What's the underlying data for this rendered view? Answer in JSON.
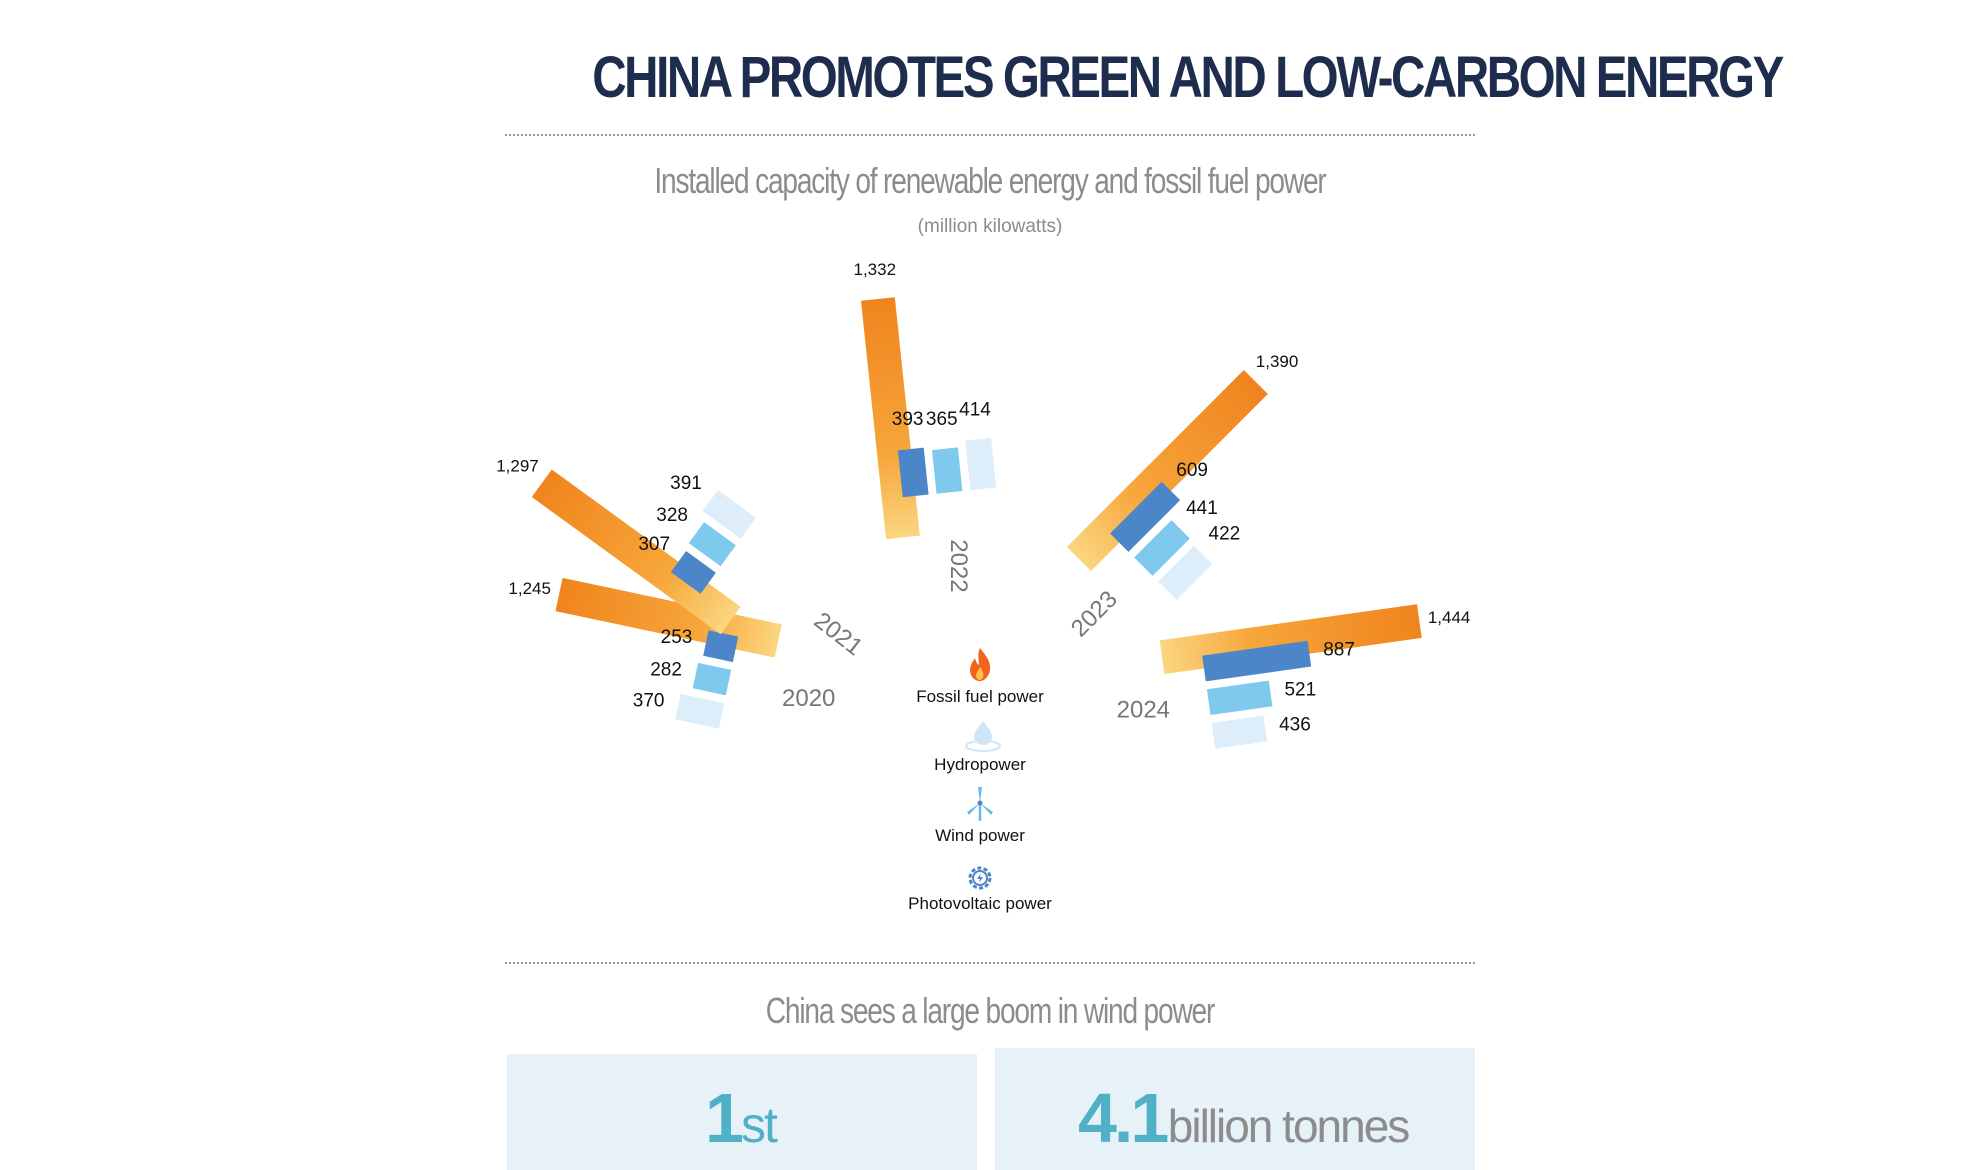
{
  "title": "CHINA PROMOTES GREEN AND LOW-CARBON ENERGY",
  "colors": {
    "title": "#1e2c4e",
    "fossil_dark": "#f0841e",
    "fossil_light": "#fbd680",
    "hydro": "#ddeefa",
    "wind": "#7fc8ee",
    "pv": "#4d86c8",
    "accent": "#4fb0c6"
  },
  "chart_data": {
    "type": "bar",
    "title": "Installed capacity of renewable energy and fossil fuel power",
    "unit": "(million kilowatts)",
    "categories": [
      "2020",
      "2021",
      "2022",
      "2023",
      "2024"
    ],
    "series": [
      {
        "name": "Fossil fuel power",
        "values": [
          1245,
          1297,
          1332,
          1390,
          1444
        ],
        "labels": [
          "1,245",
          "1,297",
          "1,332",
          "1,390",
          "1,444"
        ]
      },
      {
        "name": "Hydropower",
        "values": [
          370,
          391,
          414,
          422,
          436
        ],
        "labels": [
          "370",
          "391",
          "414",
          "422",
          "436"
        ]
      },
      {
        "name": "Wind power",
        "values": [
          282,
          328,
          365,
          441,
          521
        ],
        "labels": [
          "282",
          "328",
          "365",
          "441",
          "521"
        ]
      },
      {
        "name": "Photovoltaic power",
        "values": [
          253,
          307,
          393,
          609,
          887
        ],
        "labels": [
          "253",
          "307",
          "393",
          "609",
          "887"
        ]
      }
    ],
    "legend": [
      {
        "name": "Fossil fuel power",
        "icon": "flame-icon"
      },
      {
        "name": "Hydropower",
        "icon": "water-drop-icon"
      },
      {
        "name": "Wind power",
        "icon": "wind-turbine-icon"
      },
      {
        "name": "Photovoltaic power",
        "icon": "solar-gear-icon"
      }
    ],
    "legend_placement": "center"
  },
  "section2": {
    "title": "China sees a large boom in wind power",
    "cards": [
      {
        "value": "1",
        "suffix": "st"
      },
      {
        "value": "4.1",
        "suffix": "billion tonnes"
      }
    ]
  }
}
